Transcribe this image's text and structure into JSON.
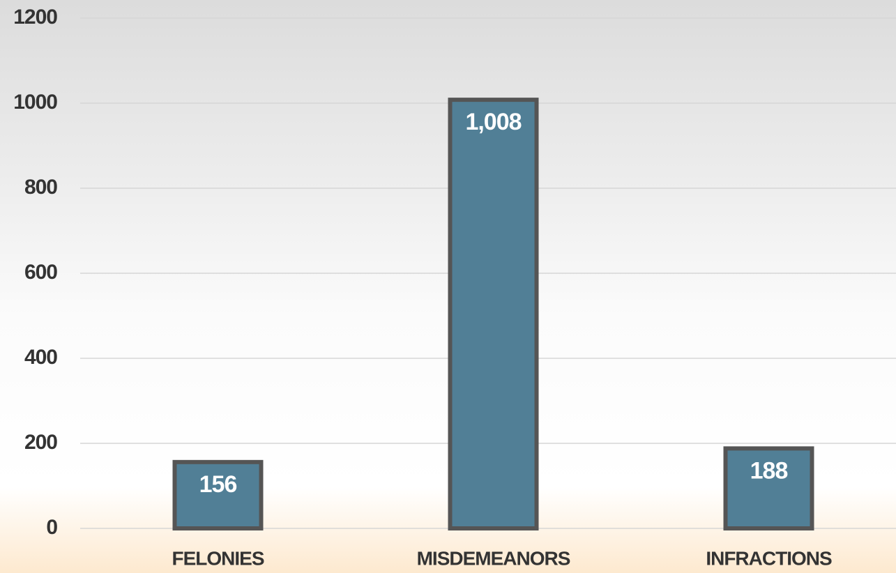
{
  "chart_data": {
    "type": "bar",
    "categories": [
      "FELONIES",
      "MISDEMEANORS",
      "INFRACTIONS"
    ],
    "values": [
      156,
      1008,
      188
    ],
    "value_labels": [
      "156",
      "1,008",
      "188"
    ],
    "color": "#517f96",
    "ylim": [
      0,
      1200
    ],
    "yticks": [
      0,
      200,
      400,
      600,
      800,
      1000,
      1200
    ],
    "grid": true
  }
}
